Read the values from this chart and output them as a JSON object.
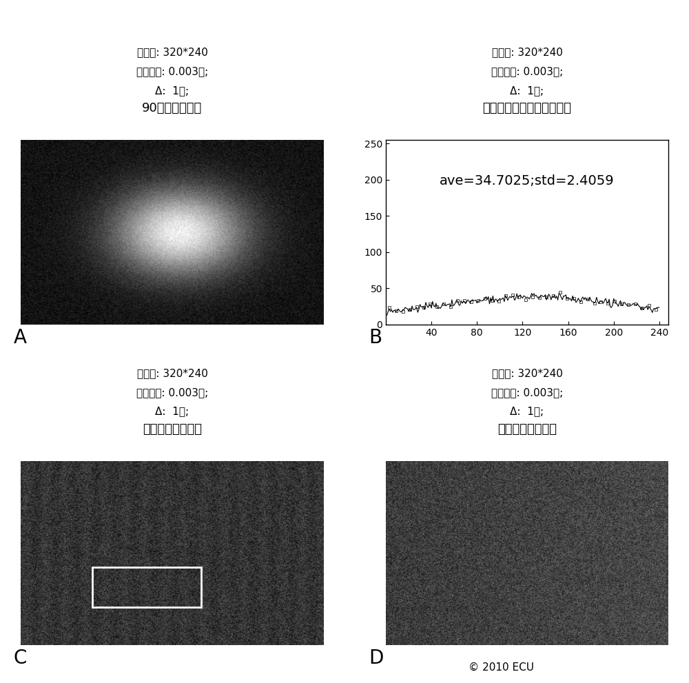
{
  "title_A_lines": [
    "90个帧的平均值",
    "Δ:  1秒;",
    "曝光时间: 0.003秒;",
    "分辨率: 320*240"
  ],
  "title_B_lines": [
    "反向散斑衬比的中间垂直线",
    "Δ:  1秒;",
    "曝光时间: 0.003秒;",
    "分辨率: 320*240"
  ],
  "title_C_lines": [
    "反向散斑衬比灰阶",
    "Δ:  1秒;",
    "曝光时间: 0.003秒;",
    "分辨率: 320*240"
  ],
  "title_D_lines": [
    "反向散斑衬比彩色",
    "Δ:  1秒;",
    "曝光时间: 0.003秒;",
    "分辨率: 320*240"
  ],
  "label_A": "A",
  "label_B": "B",
  "label_C": "C",
  "label_D": "D",
  "annotation_B": "ave=34.7025;std=2.4059",
  "copyright": "© 2010 ECU",
  "bg_color": "#ffffff"
}
